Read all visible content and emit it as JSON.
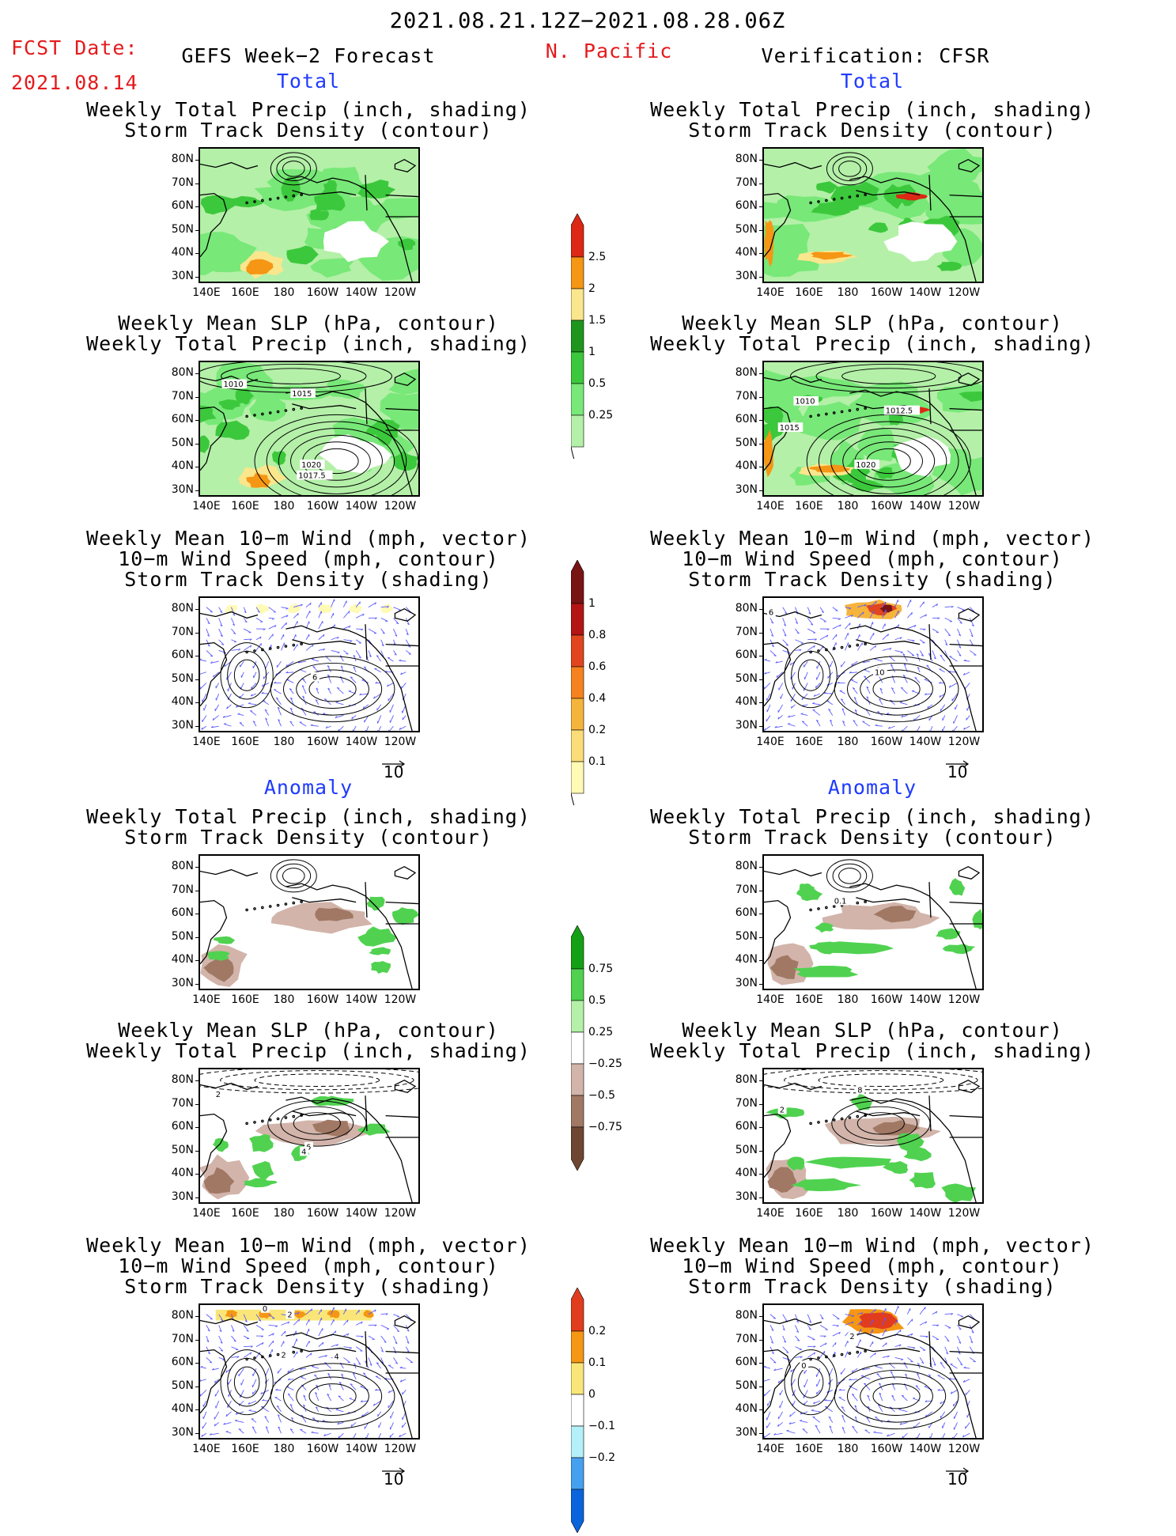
{
  "header": {
    "period": "2021.08.21.12Z−2021.08.28.06Z",
    "fcst_label": "FCST Date:",
    "fcst_date": "2021.08.14",
    "model": "GEFS Week−2 Forecast",
    "region": "N. Pacific",
    "verification": "Verification: CFSR"
  },
  "section_labels": {
    "total": "Total",
    "anomaly": "Anomaly"
  },
  "panel_titles": {
    "precip_track": [
      "Weekly Total Precip (inch, shading)",
      "Storm Track Density (contour)"
    ],
    "slp_precip": [
      "Weekly Mean SLP (hPa, contour)",
      "Weekly Total Precip (inch, shading)"
    ],
    "wind_track": [
      "Weekly Mean 10−m Wind (mph, vector)",
      "10−m Wind Speed (mph, contour)",
      "Storm Track Density (shading)"
    ]
  },
  "axes": {
    "lat_ticks": [
      "80N",
      "70N",
      "60N",
      "50N",
      "40N",
      "30N"
    ],
    "lon_ticks": [
      "140E",
      "160E",
      "180",
      "160W",
      "140W",
      "120W"
    ]
  },
  "vector_reference": "10",
  "contour_labels": {
    "fc_total_slp": [
      "1010",
      "1015",
      "1020",
      "1017.5"
    ],
    "cfsr_total_slp": [
      "1010",
      "1012.5",
      "1015",
      "1020"
    ],
    "fc_total_wind": [
      "6"
    ],
    "cfsr_total_wind": [
      "6",
      "10"
    ],
    "fc_anom_slp": [
      "2",
      "6",
      "4"
    ],
    "cfsr_anom_slp": [
      "2",
      "8"
    ],
    "cfsr_anom_precip": [
      "0.1"
    ],
    "fc_anom_wind": [
      "0",
      "2",
      "2",
      "4"
    ],
    "cfsr_anom_wind": [
      "2",
      "0"
    ]
  },
  "colors": {
    "title_red": "#e41a1c",
    "label_blue": "#1f3bff",
    "precip": [
      "#b4f0a8",
      "#78e878",
      "#3cc83c",
      "#1e961e",
      "#fae68c",
      "#f59614",
      "#dc2814"
    ],
    "track_total": [
      "#fffab4",
      "#fadc78",
      "#f5b43c",
      "#f5821e",
      "#e1461e",
      "#b41414",
      "#781414"
    ],
    "precip_anom": [
      "#6e4632",
      "#a07864",
      "#d2b4aa",
      "#ffffff",
      "#b4f0a8",
      "#50d250",
      "#14a014"
    ],
    "track_anom": [
      "#0a64dc",
      "#46a0f0",
      "#b4f0fa",
      "#ffffff",
      "#fae678",
      "#f59614",
      "#e13c1e"
    ]
  },
  "chart_data": [
    {
      "type": "heatmap",
      "id": "fc_total_precip_track",
      "title": "Weekly Total Precip (inch, shading) / Storm Track Density (contour)",
      "source": "GEFS Week−2 Forecast",
      "view": "Total",
      "x_ticks": [
        "140E",
        "160E",
        "180",
        "160W",
        "140W",
        "120W"
      ],
      "y_ticks": [
        "80N",
        "70N",
        "60N",
        "50N",
        "40N",
        "30N"
      ],
      "shading_levels": [
        0.25,
        0.5,
        1,
        1.5,
        2,
        2.5
      ]
    },
    {
      "type": "heatmap",
      "id": "fc_total_slp_precip",
      "title": "Weekly Mean SLP (hPa, contour) / Weekly Total Precip (inch, shading)",
      "source": "GEFS Week−2 Forecast",
      "view": "Total",
      "contour_values": [
        1010,
        1015,
        1017.5,
        1020
      ],
      "shading_levels": [
        0.25,
        0.5,
        1,
        1.5,
        2,
        2.5
      ]
    },
    {
      "type": "heatmap",
      "id": "fc_total_wind_track",
      "title": "Weekly Mean 10−m Wind (mph, vector) / 10−m Wind Speed (mph, contour) / Storm Track Density (shading)",
      "source": "GEFS Week−2 Forecast",
      "view": "Total",
      "contour_values": [
        6
      ],
      "shading_levels": [
        0.1,
        0.2,
        0.4,
        0.6,
        0.8,
        1
      ],
      "vector_reference": 10
    },
    {
      "type": "heatmap",
      "id": "cfsr_total_precip_track",
      "title": "Weekly Total Precip (inch, shading) / Storm Track Density (contour)",
      "source": "Verification: CFSR",
      "view": "Total",
      "shading_levels": [
        0.25,
        0.5,
        1,
        1.5,
        2,
        2.5
      ]
    },
    {
      "type": "heatmap",
      "id": "cfsr_total_slp_precip",
      "title": "Weekly Mean SLP (hPa, contour) / Weekly Total Precip (inch, shading)",
      "source": "Verification: CFSR",
      "view": "Total",
      "contour_values": [
        1010,
        1012.5,
        1015,
        1020
      ],
      "shading_levels": [
        0.25,
        0.5,
        1,
        1.5,
        2,
        2.5
      ]
    },
    {
      "type": "heatmap",
      "id": "cfsr_total_wind_track",
      "title": "Weekly Mean 10−m Wind (mph, vector) / 10−m Wind Speed (mph, contour) / Storm Track Density (shading)",
      "source": "Verification: CFSR",
      "view": "Total",
      "contour_values": [
        6,
        10
      ],
      "shading_levels": [
        0.1,
        0.2,
        0.4,
        0.6,
        0.8,
        1
      ],
      "vector_reference": 10
    },
    {
      "type": "heatmap",
      "id": "fc_anom_precip_track",
      "title": "Weekly Total Precip (inch, shading) / Storm Track Density (contour)",
      "source": "GEFS Week−2 Forecast",
      "view": "Anomaly",
      "shading_levels": [
        -0.75,
        -0.5,
        -0.25,
        0.25,
        0.5,
        0.75
      ]
    },
    {
      "type": "heatmap",
      "id": "fc_anom_slp_precip",
      "title": "Weekly Mean SLP (hPa, contour) / Weekly Total Precip (inch, shading)",
      "source": "GEFS Week−2 Forecast",
      "view": "Anomaly",
      "contour_values": [
        2,
        4,
        6
      ],
      "shading_levels": [
        -0.75,
        -0.5,
        -0.25,
        0.25,
        0.5,
        0.75
      ]
    },
    {
      "type": "heatmap",
      "id": "fc_anom_wind_track",
      "title": "Weekly Mean 10−m Wind (mph, vector) / 10−m Wind Speed (mph, contour) / Storm Track Density (shading)",
      "source": "GEFS Week−2 Forecast",
      "view": "Anomaly",
      "contour_values": [
        0,
        2,
        4
      ],
      "shading_levels": [
        -0.2,
        -0.1,
        0,
        0.1,
        0.2
      ],
      "vector_reference": 10
    },
    {
      "type": "heatmap",
      "id": "cfsr_anom_precip_track",
      "title": "Weekly Total Precip (inch, shading) / Storm Track Density (contour)",
      "source": "Verification: CFSR",
      "view": "Anomaly",
      "contour_values": [
        0.1
      ],
      "shading_levels": [
        -0.75,
        -0.5,
        -0.25,
        0.25,
        0.5,
        0.75
      ]
    },
    {
      "type": "heatmap",
      "id": "cfsr_anom_slp_precip",
      "title": "Weekly Mean SLP (hPa, contour) / Weekly Total Precip (inch, shading)",
      "source": "Verification: CFSR",
      "view": "Anomaly",
      "contour_values": [
        2,
        8
      ],
      "shading_levels": [
        -0.75,
        -0.5,
        -0.25,
        0.25,
        0.5,
        0.75
      ]
    },
    {
      "type": "heatmap",
      "id": "cfsr_anom_wind_track",
      "title": "Weekly Mean 10−m Wind (mph, vector) / 10−m Wind Speed (mph, contour) / Storm Track Density (shading)",
      "source": "Verification: CFSR",
      "view": "Anomaly",
      "contour_values": [
        0,
        2
      ],
      "shading_levels": [
        -0.2,
        -0.1,
        0,
        0.1,
        0.2
      ],
      "vector_reference": 10
    }
  ],
  "colorbars": [
    {
      "id": "precip_total",
      "levels": [
        "2.5",
        "2",
        "1.5",
        "1",
        "0.5",
        "0.25"
      ]
    },
    {
      "id": "track_total",
      "levels": [
        "1",
        "0.8",
        "0.6",
        "0.4",
        "0.2",
        "0.1"
      ]
    },
    {
      "id": "precip_anom",
      "levels": [
        "0.75",
        "0.5",
        "0.25",
        "−0.25",
        "−0.5",
        "−0.75"
      ]
    },
    {
      "id": "track_anom",
      "levels": [
        "0.2",
        "0.1",
        "0",
        "−0.1",
        "−0.2"
      ]
    }
  ]
}
